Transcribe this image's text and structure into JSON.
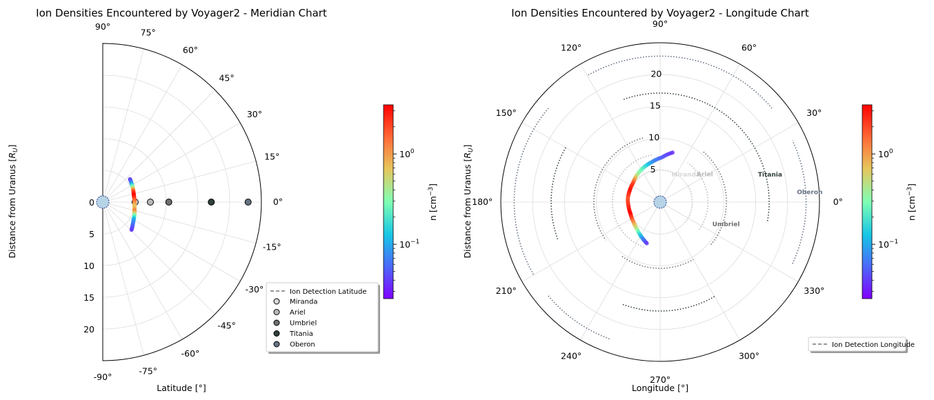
{
  "chart_data": [
    {
      "type": "polar-scatter",
      "title": "Ion Densities Encountered by Voyager2 - Meridian Chart",
      "xlabel": "Latitude [°]",
      "ylabel": "Distance from Uranus [R_U]",
      "ylabel_main": "Distance from Uranus [",
      "ylabel_sub": "U",
      "ylabel_end": "]",
      "angle_range_deg": [
        -90,
        90
      ],
      "angle_ticks": [
        "-90°",
        "-75°",
        "-60°",
        "-45°",
        "-30°",
        "-15°",
        "0°",
        "15°",
        "30°",
        "45°",
        "60°",
        "75°",
        "90°"
      ],
      "angle_tick_values": [
        -90,
        -75,
        -60,
        -45,
        -30,
        -15,
        0,
        15,
        30,
        45,
        60,
        75,
        90
      ],
      "r_max": 25,
      "r_ticks_upper": [
        "0"
      ],
      "r_ticks_lower": [
        "5",
        "10",
        "15",
        "20"
      ],
      "r_tick_values_lower": [
        5,
        10,
        15,
        20
      ],
      "grid": true,
      "trajectory": {
        "name": "Ion Detection Latitude",
        "points": [
          [
            40,
            5.6
          ],
          [
            33,
            5.4
          ],
          [
            26,
            5.25
          ],
          [
            19,
            5.1
          ],
          [
            12,
            5.0
          ],
          [
            5,
            5.0
          ],
          [
            -2,
            5.0
          ],
          [
            -9,
            5.05
          ],
          [
            -16,
            5.2
          ],
          [
            -23,
            5.4
          ],
          [
            -30,
            5.6
          ],
          [
            -37,
            5.9
          ],
          [
            -44,
            6.3
          ]
        ],
        "log10_n": [
          -1.45,
          -1.1,
          -0.4,
          0.3,
          0.55,
          0.3,
          0.05,
          -0.2,
          0.1,
          -0.5,
          -1.0,
          -1.2,
          -1.4
        ]
      },
      "moons": [
        {
          "name": "Miranda",
          "distance": 5.1,
          "color": "#d6d6d6"
        },
        {
          "name": "Ariel",
          "distance": 7.5,
          "color": "#b8b8b8"
        },
        {
          "name": "Umbriel",
          "distance": 10.4,
          "color": "#6e6e6e"
        },
        {
          "name": "Titania",
          "distance": 17.1,
          "color": "#2f3f3c"
        },
        {
          "name": "Oberon",
          "distance": 22.9,
          "color": "#657282"
        }
      ],
      "legend": {
        "placement": "lower-right",
        "entries": [
          "Ion Detection Latitude",
          "Miranda",
          "Ariel",
          "Umbriel",
          "Titania",
          "Oberon"
        ]
      },
      "colorbar": {
        "label": "n [cm⁻³]",
        "label_main": "n [cm",
        "label_sup": "−3",
        "label_end": "]",
        "scale": "log",
        "range": [
          0.025,
          3.5
        ],
        "ticks": [
          {
            "label": "10",
            "exp": "0",
            "value": 1
          },
          {
            "label": "10",
            "exp": "−1",
            "value": 0.1
          }
        ],
        "colormap": "rainbow"
      }
    },
    {
      "type": "polar-scatter",
      "title": "Ion Densities Encountered by Voyager2 - Longitude Chart",
      "xlabel": "Longitude [°]",
      "ylabel": "Distance from Uranus [R_U]",
      "ylabel_main": "Distance from Uranus [",
      "ylabel_sub": "U",
      "ylabel_end": "]",
      "angle_range_deg": [
        0,
        360
      ],
      "angle_ticks": [
        "0°",
        "30°",
        "60°",
        "90°",
        "120°",
        "150°",
        "180°",
        "210°",
        "240°",
        "270°",
        "300°",
        "330°"
      ],
      "angle_tick_values": [
        0,
        30,
        60,
        90,
        120,
        150,
        180,
        210,
        240,
        270,
        300,
        330
      ],
      "r_max": 25,
      "r_ticks": [
        "5",
        "10",
        "15",
        "20"
      ],
      "r_tick_values": [
        5,
        10,
        15,
        20
      ],
      "grid": true,
      "trajectory": {
        "name": "Ion Detection Longitude",
        "points": [
          [
            76,
            8.0
          ],
          [
            88,
            7.0
          ],
          [
            102,
            6.4
          ],
          [
            116,
            6.0
          ],
          [
            130,
            5.6
          ],
          [
            145,
            5.2
          ],
          [
            160,
            5.1
          ],
          [
            174,
            5.1
          ],
          [
            188,
            5.0
          ],
          [
            202,
            5.0
          ],
          [
            216,
            5.2
          ],
          [
            230,
            5.6
          ],
          [
            242,
            6.2
          ],
          [
            252,
            6.8
          ]
        ],
        "log10_n": [
          -1.45,
          -1.3,
          -1.1,
          -0.7,
          -0.4,
          0.3,
          0.5,
          0.25,
          0.4,
          0.55,
          0.1,
          -0.4,
          -1.0,
          -1.4
        ]
      },
      "moon_orbits": [
        {
          "name": "Miranda",
          "distance": 5.1,
          "color": "#d6d6d6",
          "label_angle": 45
        },
        {
          "name": "Ariel",
          "distance": 7.5,
          "color": "#b8b8b8",
          "label_angle": 30
        },
        {
          "name": "Umbriel",
          "distance": 10.4,
          "color": "#6e6e6e",
          "label_angle": -20
        },
        {
          "name": "Titania",
          "distance": 17.1,
          "color": "#2f3f3c",
          "label_angle": 13
        },
        {
          "name": "Oberon",
          "distance": 22.9,
          "color": "#657282",
          "label_angle": 3
        }
      ],
      "legend": {
        "placement": "lower-right",
        "entries": [
          "Ion Detection Longitude"
        ]
      },
      "colorbar": {
        "label": "n [cm⁻³]",
        "label_main": "n [cm",
        "label_sup": "−3",
        "label_end": "]",
        "scale": "log",
        "range": [
          0.025,
          3.5
        ],
        "ticks": [
          {
            "label": "10",
            "exp": "0",
            "value": 1
          },
          {
            "label": "10",
            "exp": "−1",
            "value": 0.1
          }
        ],
        "colormap": "rainbow"
      }
    }
  ]
}
